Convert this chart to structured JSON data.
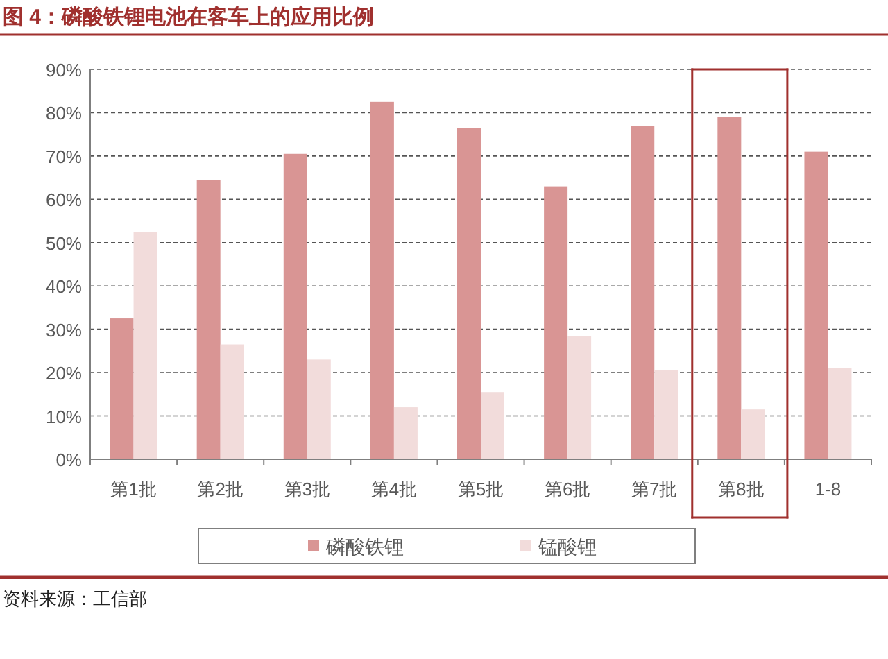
{
  "chart_data": {
    "type": "bar",
    "title": "图 4：磷酸铁锂电池在客车上的应用比例",
    "categories": [
      "第1批",
      "第2批",
      "第3批",
      "第4批",
      "第5批",
      "第6批",
      "第7批",
      "第8批",
      "1-8"
    ],
    "series": [
      {
        "name": "磷酸铁锂",
        "color": "#d99594",
        "values": [
          32.5,
          64.5,
          70.5,
          82.5,
          76.5,
          63,
          77,
          79,
          71
        ]
      },
      {
        "name": "锰酸锂",
        "color": "#f2dcdb",
        "values": [
          52.5,
          26.5,
          23,
          12,
          15.5,
          28.5,
          20.5,
          11.5,
          21
        ]
      }
    ],
    "ylim": [
      0,
      90
    ],
    "yticks": [
      {
        "value": 0,
        "label": "0%"
      },
      {
        "value": 10,
        "label": "10%"
      },
      {
        "value": 20,
        "label": "20%"
      },
      {
        "value": 30,
        "label": "30%"
      },
      {
        "value": 40,
        "label": "40%"
      },
      {
        "value": 50,
        "label": "50%"
      },
      {
        "value": 60,
        "label": "60%"
      },
      {
        "value": 70,
        "label": "70%"
      },
      {
        "value": 80,
        "label": "80%"
      },
      {
        "value": 90,
        "label": "90%"
      }
    ],
    "grid": "y",
    "legend": "bottom",
    "annotations": [
      "资料来源：工信部"
    ]
  }
}
